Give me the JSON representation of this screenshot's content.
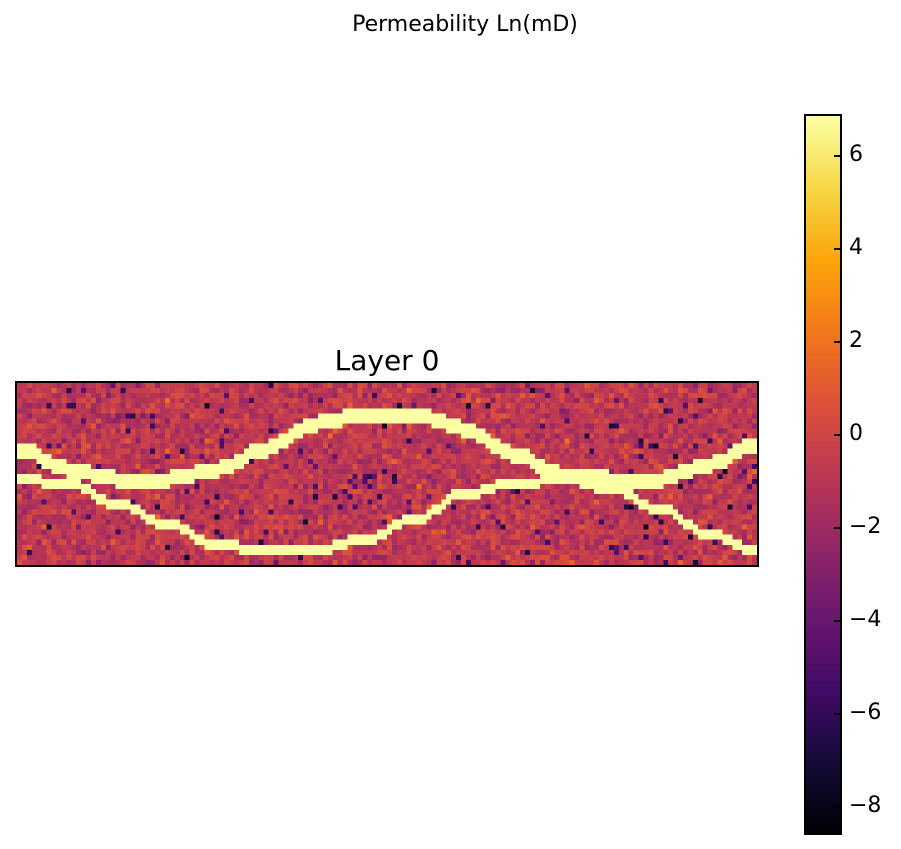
{
  "figure": {
    "suptitle": "Permeability Ln(mD)"
  },
  "chart_data": {
    "type": "heatmap",
    "title": "Layer 0",
    "xlabel": "",
    "ylabel": "",
    "grid": false,
    "axes_ticks": false,
    "colormap": "inferno",
    "value_range": [
      -8.6,
      6.9
    ],
    "colorbar": {
      "ticks": [
        6,
        4,
        2,
        0,
        -2,
        -4,
        -6,
        -8
      ],
      "tick_labels": [
        "6",
        "4",
        "2",
        "0",
        "−2",
        "−4",
        "−6",
        "−8"
      ]
    },
    "grid_shape": {
      "columns": 150,
      "rows": 36
    },
    "background": {
      "mean": -0.8,
      "std": 0.8,
      "low_outlier_fraction": 0.03,
      "low_outlier_value": -5.5
    },
    "channels": [
      {
        "name": "",
        "value": 6.9,
        "thickness_rows": 3,
        "centerline": [
          {
            "x": 0,
            "y": 13
          },
          {
            "x": 10,
            "y": 17
          },
          {
            "x": 20,
            "y": 19
          },
          {
            "x": 30,
            "y": 19
          },
          {
            "x": 40,
            "y": 17
          },
          {
            "x": 50,
            "y": 13
          },
          {
            "x": 60,
            "y": 8
          },
          {
            "x": 70,
            "y": 6
          },
          {
            "x": 80,
            "y": 6
          },
          {
            "x": 90,
            "y": 9
          },
          {
            "x": 100,
            "y": 14
          },
          {
            "x": 110,
            "y": 18
          },
          {
            "x": 120,
            "y": 19
          },
          {
            "x": 130,
            "y": 19
          },
          {
            "x": 140,
            "y": 16
          },
          {
            "x": 149,
            "y": 12
          }
        ]
      },
      {
        "name": "",
        "value": 6.9,
        "thickness_rows": 2,
        "centerline": [
          {
            "x": 0,
            "y": 19
          },
          {
            "x": 10,
            "y": 20
          },
          {
            "x": 20,
            "y": 24
          },
          {
            "x": 30,
            "y": 28
          },
          {
            "x": 40,
            "y": 32
          },
          {
            "x": 50,
            "y": 33
          },
          {
            "x": 60,
            "y": 33
          },
          {
            "x": 70,
            "y": 31
          },
          {
            "x": 80,
            "y": 27
          },
          {
            "x": 90,
            "y": 22
          },
          {
            "x": 100,
            "y": 20
          },
          {
            "x": 110,
            "y": 19
          },
          {
            "x": 120,
            "y": 21
          },
          {
            "x": 130,
            "y": 25
          },
          {
            "x": 140,
            "y": 30
          },
          {
            "x": 149,
            "y": 33
          }
        ]
      }
    ]
  }
}
